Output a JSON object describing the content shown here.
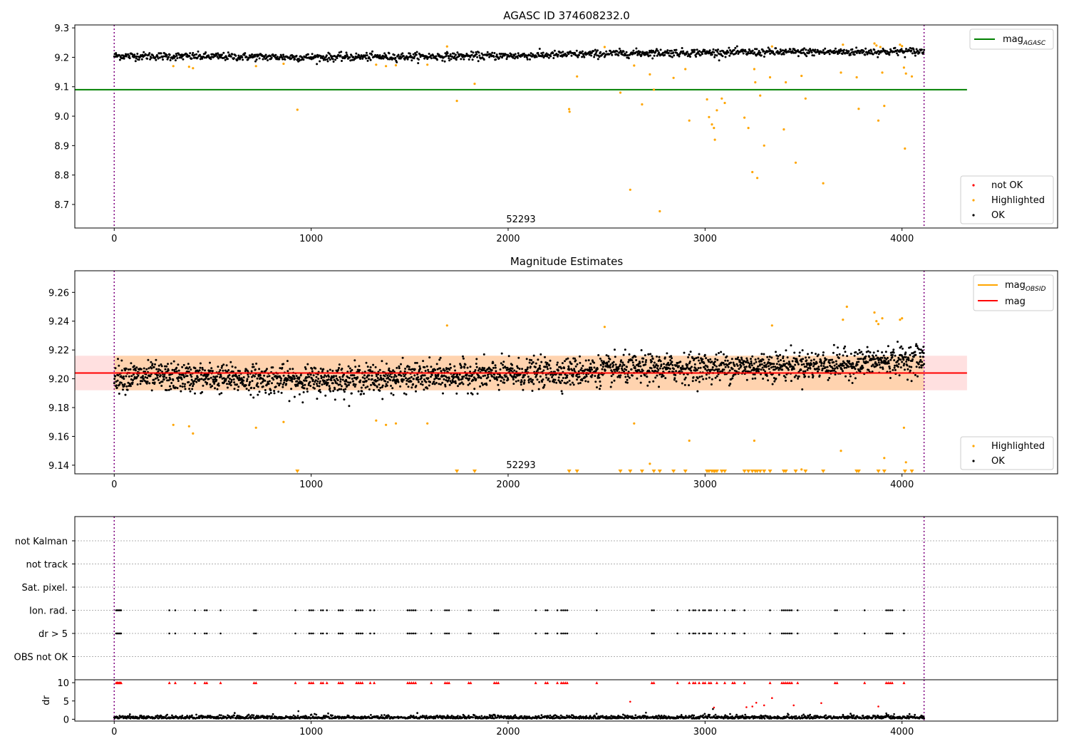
{
  "chart_data": [
    {
      "type": "scatter",
      "title": "AGASC ID 374608232.0",
      "obsid_label": "52293",
      "xlim": [
        -200,
        4790
      ],
      "ylim": [
        8.62,
        9.31
      ],
      "xticks": [
        0,
        1000,
        2000,
        3000,
        4000
      ],
      "yticks": [
        8.7,
        8.8,
        8.9,
        9.0,
        9.1,
        9.2,
        9.3
      ],
      "vlines_x": [
        0,
        4112
      ],
      "mag_agasc": 9.09,
      "mag_agasc_x": [
        -200,
        4330
      ],
      "ok_series": {
        "name": "OK",
        "color": "#000000",
        "x_range": [
          0,
          4112
        ],
        "baseline": [
          [
            0,
            9.205
          ],
          [
            1000,
            9.2
          ],
          [
            2000,
            9.205
          ],
          [
            2700,
            9.215
          ],
          [
            4112,
            9.22
          ]
        ],
        "noise": 0.012,
        "count": 1400
      },
      "highlighted": {
        "name": "Highlighted",
        "color": "#ffa500",
        "points": [
          [
            300,
            9.17
          ],
          [
            380,
            9.168
          ],
          [
            400,
            9.163
          ],
          [
            720,
            9.17
          ],
          [
            860,
            9.178
          ],
          [
            930,
            9.022
          ],
          [
            1330,
            9.175
          ],
          [
            1380,
            9.17
          ],
          [
            1430,
            9.173
          ],
          [
            1590,
            9.175
          ],
          [
            1690,
            9.237
          ],
          [
            1740,
            9.052
          ],
          [
            1830,
            9.11
          ],
          [
            2310,
            9.024
          ],
          [
            2312,
            9.015
          ],
          [
            2350,
            9.135
          ],
          [
            2490,
            9.235
          ],
          [
            2570,
            9.08
          ],
          [
            2620,
            8.75
          ],
          [
            2640,
            9.172
          ],
          [
            2680,
            9.04
          ],
          [
            2720,
            9.142
          ],
          [
            2740,
            9.09
          ],
          [
            2770,
            8.677
          ],
          [
            2840,
            9.13
          ],
          [
            2900,
            9.16
          ],
          [
            2920,
            8.985
          ],
          [
            3010,
            9.057
          ],
          [
            3020,
            8.997
          ],
          [
            3035,
            8.972
          ],
          [
            3045,
            8.96
          ],
          [
            3050,
            8.92
          ],
          [
            3060,
            9.02
          ],
          [
            3085,
            9.06
          ],
          [
            3100,
            9.045
          ],
          [
            3200,
            8.995
          ],
          [
            3220,
            8.96
          ],
          [
            3240,
            8.81
          ],
          [
            3250,
            9.16
          ],
          [
            3255,
            9.115
          ],
          [
            3265,
            8.79
          ],
          [
            3280,
            9.07
          ],
          [
            3300,
            8.9
          ],
          [
            3330,
            9.132
          ],
          [
            3340,
            9.237
          ],
          [
            3400,
            8.955
          ],
          [
            3410,
            9.115
          ],
          [
            3460,
            8.842
          ],
          [
            3490,
            9.137
          ],
          [
            3510,
            9.06
          ],
          [
            3600,
            8.772
          ],
          [
            3690,
            9.148
          ],
          [
            3700,
            9.243
          ],
          [
            3770,
            9.132
          ],
          [
            3780,
            9.025
          ],
          [
            3860,
            9.247
          ],
          [
            3870,
            9.24
          ],
          [
            3880,
            8.985
          ],
          [
            3890,
            9.235
          ],
          [
            3900,
            9.148
          ],
          [
            3910,
            9.035
          ],
          [
            3990,
            9.243
          ],
          [
            4000,
            9.238
          ],
          [
            4010,
            9.165
          ],
          [
            4015,
            8.89
          ],
          [
            4020,
            9.145
          ],
          [
            4050,
            9.135
          ]
        ]
      },
      "not_ok": {
        "name": "not OK",
        "color": "#ff0000",
        "points": []
      },
      "legend_top": [
        {
          "label": "mag",
          "sub": "AGASC",
          "color": "#008000"
        }
      ],
      "legend_bottom": [
        {
          "label": "not OK",
          "color": "#ff0000"
        },
        {
          "label": "Highlighted",
          "color": "#ffa500"
        },
        {
          "label": "OK",
          "color": "#000000"
        }
      ]
    },
    {
      "type": "scatter",
      "title": "Magnitude Estimates",
      "obsid_label": "52293",
      "xlim": [
        -200,
        4790
      ],
      "ylim": [
        9.134,
        9.275
      ],
      "xticks": [
        0,
        1000,
        2000,
        3000,
        4000
      ],
      "yticks": [
        9.14,
        9.16,
        9.18,
        9.2,
        9.22,
        9.24,
        9.26
      ],
      "vlines_x": [
        0,
        4112
      ],
      "mag": 9.204,
      "mag_std_band": [
        9.192,
        9.216
      ],
      "mag_x": [
        -200,
        4330
      ],
      "mag_obsid": 9.204,
      "mag_obsid_band": [
        9.192,
        9.216
      ],
      "mag_obsid_x": [
        0,
        4112
      ],
      "ok_series": {
        "name": "OK",
        "color": "#000000",
        "x_range": [
          0,
          4112
        ],
        "baseline": [
          [
            0,
            9.202
          ],
          [
            1000,
            9.199
          ],
          [
            2000,
            9.203
          ],
          [
            2700,
            9.207
          ],
          [
            3700,
            9.21
          ],
          [
            4112,
            9.214
          ]
        ],
        "noise": 0.009,
        "count": 2600
      },
      "highlighted": {
        "name": "Highlighted",
        "color": "#ffa500",
        "points": [
          [
            300,
            9.168
          ],
          [
            380,
            9.167
          ],
          [
            400,
            9.162
          ],
          [
            720,
            9.166
          ],
          [
            860,
            9.17
          ],
          [
            1330,
            9.171
          ],
          [
            1380,
            9.168
          ],
          [
            1430,
            9.169
          ],
          [
            1590,
            9.169
          ],
          [
            1690,
            9.237
          ],
          [
            2490,
            9.236
          ],
          [
            2640,
            9.169
          ],
          [
            2720,
            9.141
          ],
          [
            2920,
            9.157
          ],
          [
            3250,
            9.157
          ],
          [
            3340,
            9.237
          ],
          [
            3490,
            9.137
          ],
          [
            3690,
            9.15
          ],
          [
            3700,
            9.241
          ],
          [
            3720,
            9.25
          ],
          [
            3860,
            9.246
          ],
          [
            3870,
            9.24
          ],
          [
            3880,
            9.238
          ],
          [
            3900,
            9.242
          ],
          [
            3910,
            9.145
          ],
          [
            3990,
            9.241
          ],
          [
            4000,
            9.242
          ],
          [
            4010,
            9.166
          ],
          [
            4020,
            9.142
          ]
        ]
      },
      "clipped_x": [
        930,
        1740,
        1830,
        2310,
        2350,
        2570,
        2620,
        2680,
        2740,
        2770,
        2840,
        2900,
        3010,
        3020,
        3035,
        3045,
        3050,
        3060,
        3085,
        3100,
        3200,
        3220,
        3240,
        3255,
        3265,
        3280,
        3300,
        3330,
        3400,
        3410,
        3460,
        3510,
        3600,
        3770,
        3780,
        3880,
        3910,
        4015,
        4050
      ],
      "legend_top": [
        {
          "label": "mag",
          "sub": "OBSID",
          "color": "#ffa500"
        },
        {
          "label": "mag",
          "sub": "",
          "color": "#ff0000"
        }
      ],
      "legend_bottom": [
        {
          "label": "Highlighted",
          "color": "#ffa500"
        },
        {
          "label": "OK",
          "color": "#000000"
        }
      ]
    },
    {
      "type": "scatter",
      "xlim": [
        -200,
        4790
      ],
      "xticks": [
        0,
        1000,
        2000,
        3000,
        4000
      ],
      "vlines_x": [
        0,
        4112
      ],
      "flag_rows": [
        "not Kalman",
        "not track",
        "Sat. pixel.",
        "Ion. rad.",
        "dr > 5",
        "OBS not OK"
      ],
      "flag_events": {
        "Ion. rad.": [
          10,
          15,
          20,
          25,
          30,
          35,
          280,
          310,
          410,
          460,
          470,
          540,
          710,
          720,
          920,
          990,
          1000,
          1010,
          1050,
          1060,
          1080,
          1140,
          1150,
          1160,
          1230,
          1240,
          1250,
          1260,
          1300,
          1320,
          1490,
          1500,
          1510,
          1520,
          1530,
          1610,
          1680,
          1690,
          1700,
          1800,
          1810,
          1930,
          1940,
          1950,
          2140,
          2190,
          2200,
          2250,
          2270,
          2280,
          2290,
          2300,
          2450,
          2730,
          2740,
          2860,
          2920,
          2940,
          2950,
          2970,
          2990,
          3000,
          3020,
          3030,
          3060,
          3100,
          3140,
          3150,
          3200,
          3330,
          3390,
          3400,
          3410,
          3420,
          3430,
          3440,
          3470,
          3660,
          3670,
          3810,
          3920,
          3930,
          3940,
          3950,
          4010
        ],
        "dr > 5": [
          10,
          15,
          20,
          25,
          30,
          35,
          280,
          310,
          410,
          460,
          470,
          540,
          710,
          720,
          920,
          990,
          1000,
          1010,
          1050,
          1060,
          1080,
          1140,
          1150,
          1160,
          1230,
          1240,
          1250,
          1260,
          1300,
          1320,
          1490,
          1500,
          1510,
          1520,
          1530,
          1610,
          1680,
          1690,
          1700,
          1800,
          1810,
          1930,
          1940,
          1950,
          2140,
          2190,
          2200,
          2250,
          2270,
          2280,
          2290,
          2300,
          2450,
          2730,
          2740,
          2860,
          2920,
          2940,
          2950,
          2970,
          2990,
          3000,
          3020,
          3030,
          3060,
          3100,
          3140,
          3150,
          3200,
          3330,
          3390,
          3400,
          3410,
          3420,
          3430,
          3440,
          3470,
          3660,
          3670,
          3810,
          3920,
          3930,
          3940,
          3950,
          4010
        ]
      },
      "dr_ylabel": "dr",
      "dr_ylim": [
        -0.5,
        10.8
      ],
      "dr_yticks": [
        0,
        5,
        10
      ],
      "dr_noise_max": 1.2,
      "dr_scattered": [
        [
          935,
          2.2
        ],
        [
          2620,
          4.8
        ],
        [
          2700,
          1.8
        ],
        [
          2880,
          1.2
        ],
        [
          3040,
          2.8
        ],
        [
          3045,
          3.2
        ],
        [
          3210,
          3.3
        ],
        [
          3240,
          3.5
        ],
        [
          3260,
          4.5
        ],
        [
          3300,
          3.8
        ],
        [
          3340,
          5.8
        ],
        [
          3420,
          1.5
        ],
        [
          3450,
          3.8
        ],
        [
          3590,
          4.4
        ],
        [
          3880,
          3.5
        ],
        [
          3920,
          1.6
        ],
        [
          3960,
          1.4
        ]
      ]
    }
  ]
}
